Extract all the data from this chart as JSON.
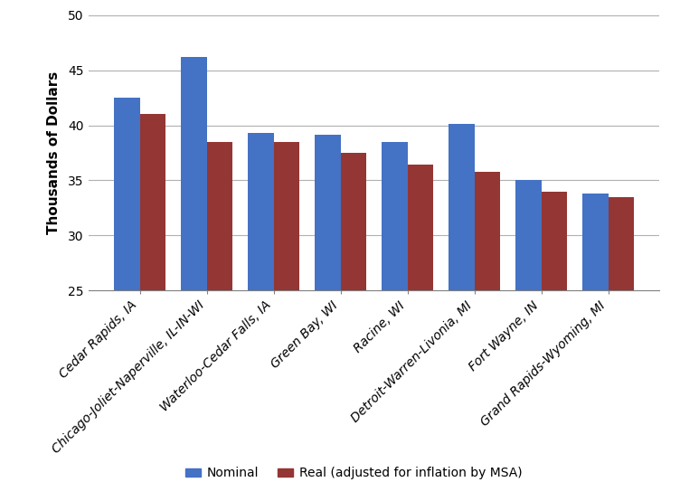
{
  "categories": [
    "Cedar Rapids, IA",
    "Chicago-Joliet-Naperville, IL-IN-WI",
    "Waterloo-Cedar Falls, IA",
    "Green Bay, WI",
    "Racine, WI",
    "Detroit-Warren-Livonia, MI",
    "Fort Wayne, IN",
    "Grand Rapids-Wyoming, MI"
  ],
  "nominal": [
    42.5,
    46.2,
    39.3,
    39.1,
    38.5,
    40.1,
    35.0,
    33.8
  ],
  "real": [
    41.0,
    38.5,
    38.5,
    37.5,
    36.4,
    35.8,
    34.0,
    33.5
  ],
  "nominal_color": "#4472C4",
  "real_color": "#943634",
  "ylabel": "Thousands of Dollars",
  "ylim_min": 25,
  "ylim_max": 50,
  "yticks": [
    25,
    30,
    35,
    40,
    45,
    50
  ],
  "legend_nominal": "Nominal",
  "legend_real": "Real (adjusted for inflation by MSA)",
  "background_color": "#ffffff",
  "grid_color": "#b0b0b0",
  "bar_width": 0.38,
  "label_fontsize": 11,
  "tick_fontsize": 10,
  "legend_fontsize": 10
}
